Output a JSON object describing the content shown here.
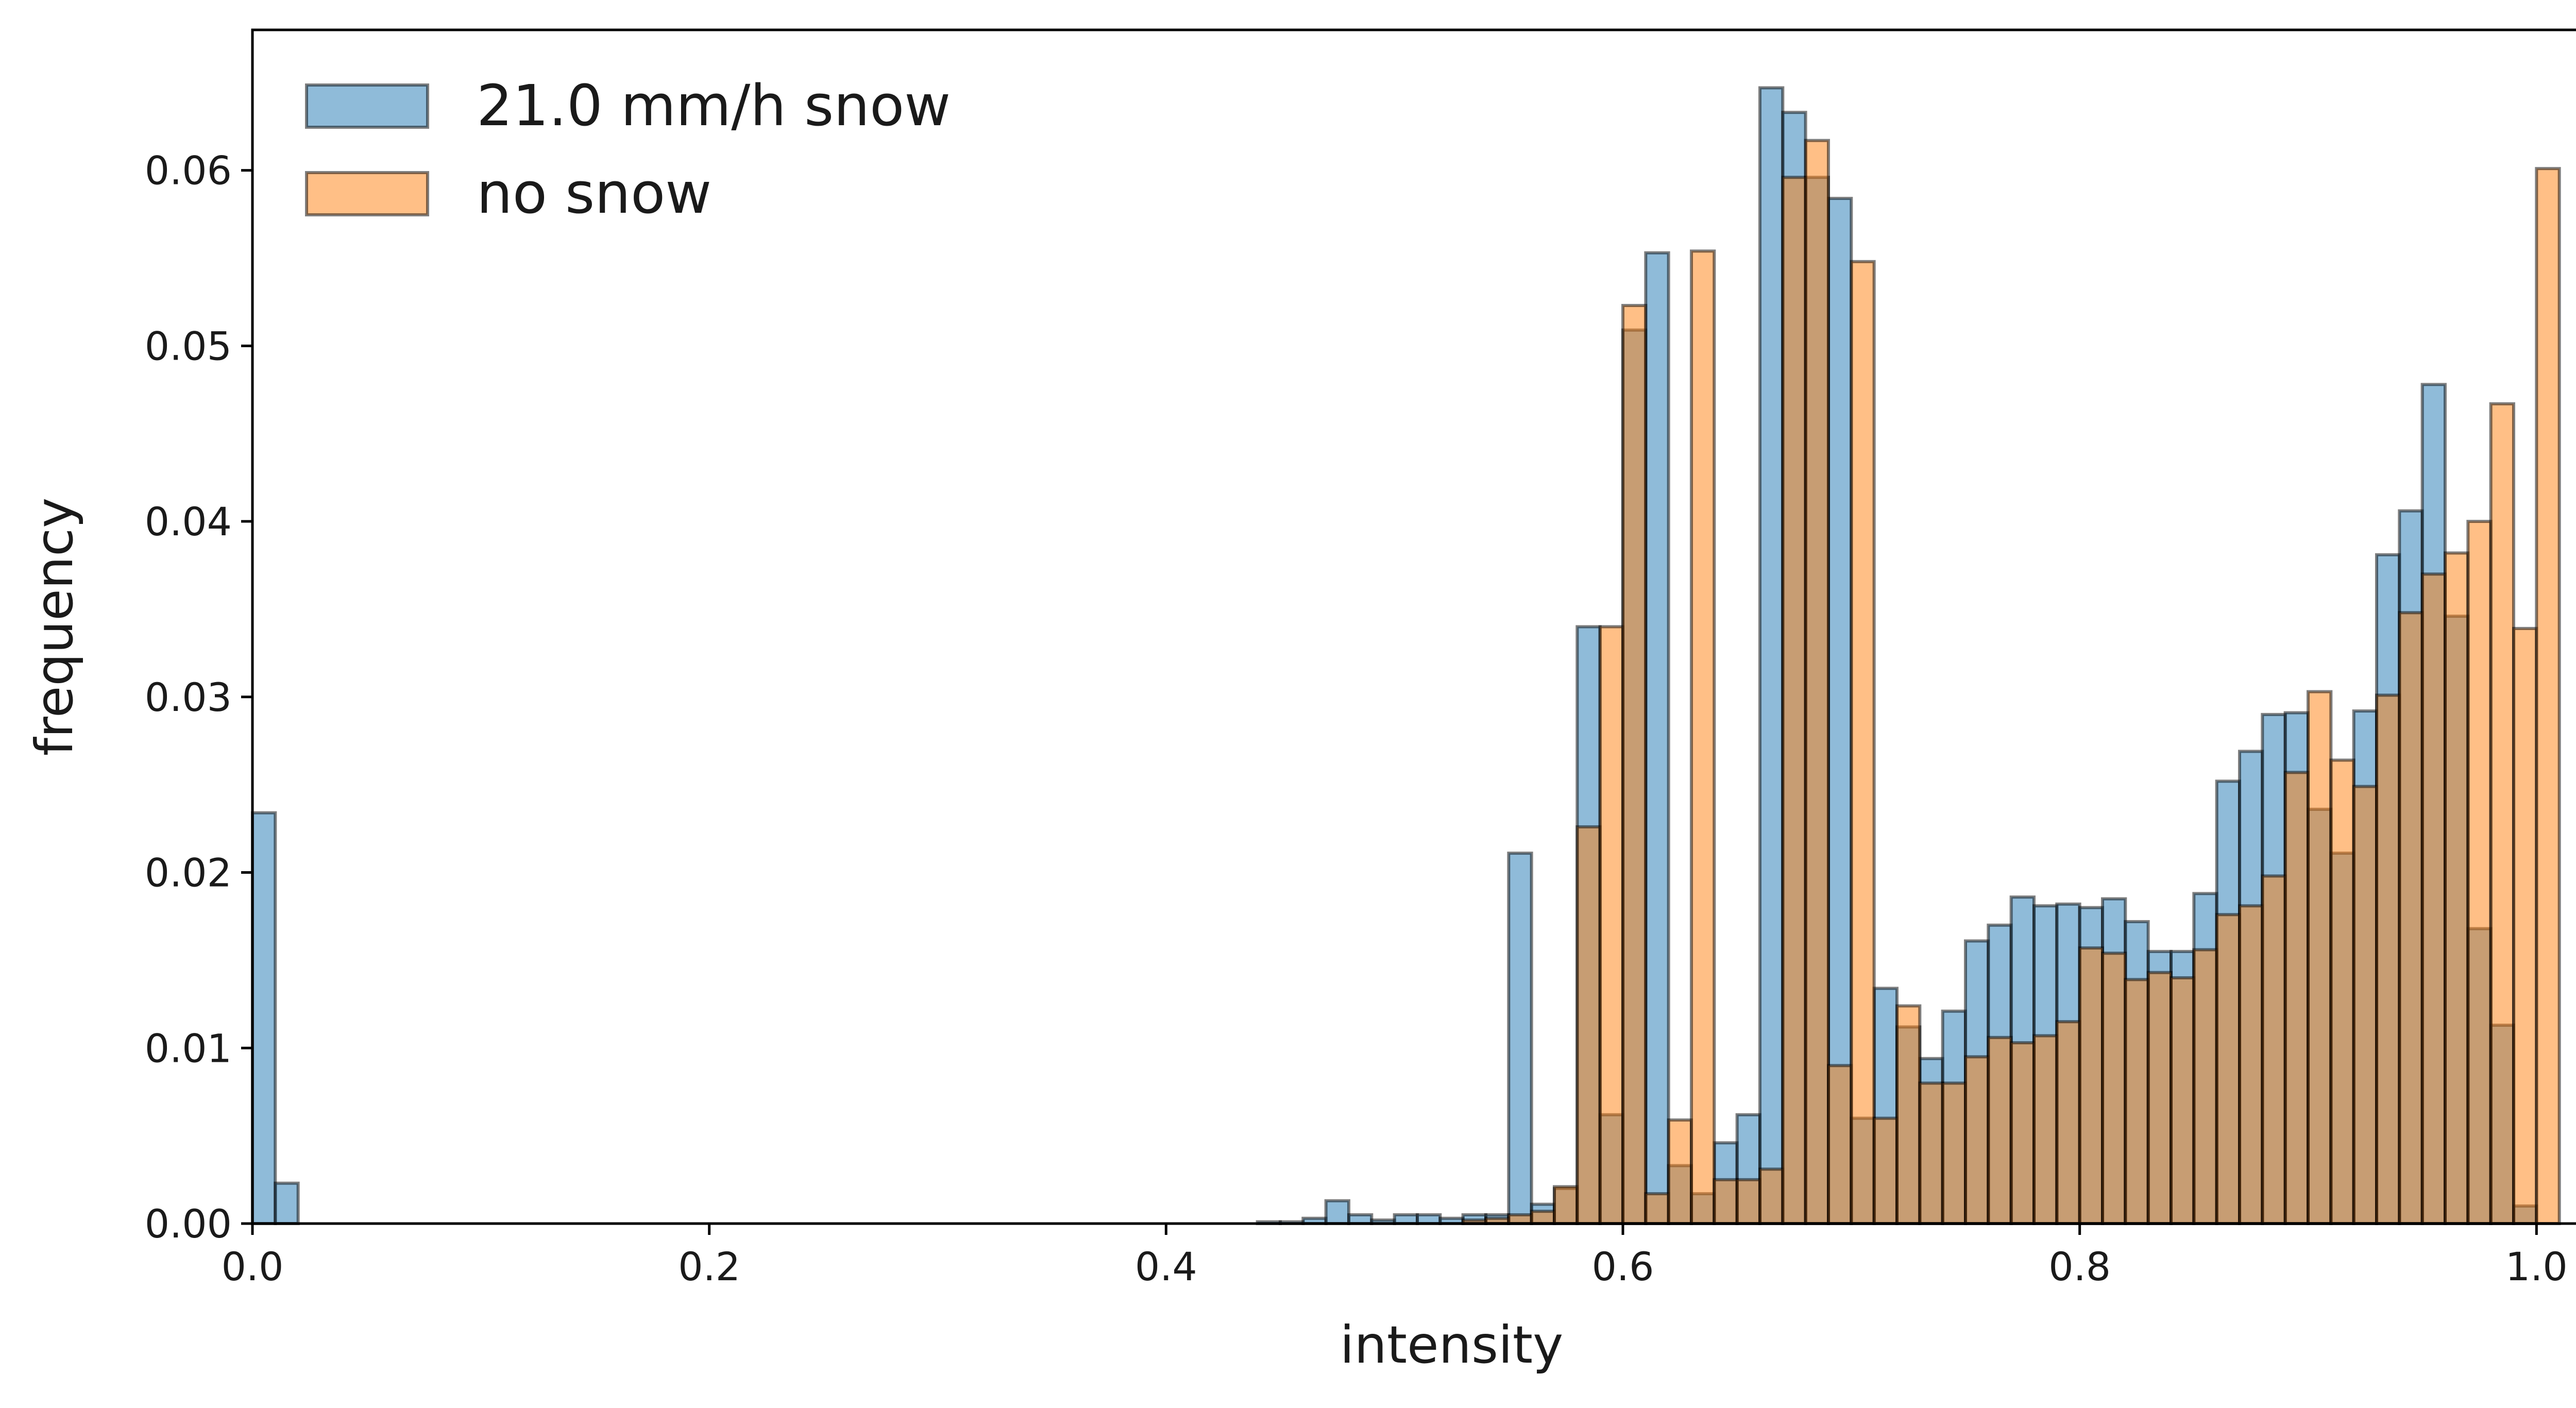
{
  "chart_data": {
    "type": "bar",
    "subtype": "overlapping histogram",
    "xlabel": "intensity",
    "ylabel": "frequency",
    "xlim": [
      0.0,
      1.05
    ],
    "ylim": [
      0.0,
      0.068
    ],
    "bin_width": 0.01,
    "x_ticks": [
      0.0,
      0.2,
      0.4,
      0.6,
      0.8,
      1.0
    ],
    "x_tick_labels": [
      "0.0",
      "0.2",
      "0.4",
      "0.6",
      "0.8",
      "1.0"
    ],
    "y_ticks": [
      0.0,
      0.01,
      0.02,
      0.03,
      0.04,
      0.05,
      0.06
    ],
    "y_tick_labels": [
      "0.00",
      "0.01",
      "0.02",
      "0.03",
      "0.04",
      "0.05",
      "0.06"
    ],
    "grid": false,
    "legend": {
      "position": "top-left",
      "frame": false
    },
    "series": [
      {
        "name": "21.0 mm/h snow",
        "color": "#1f77b4",
        "bins": [
          [
            0.0,
            0.0234
          ],
          [
            0.01,
            0.0023
          ],
          [
            0.44,
            0.0001
          ],
          [
            0.45,
            0.0001
          ],
          [
            0.46,
            0.0003
          ],
          [
            0.47,
            0.0013
          ],
          [
            0.48,
            0.0005
          ],
          [
            0.49,
            0.0002
          ],
          [
            0.5,
            0.0005
          ],
          [
            0.51,
            0.0005
          ],
          [
            0.52,
            0.0003
          ],
          [
            0.53,
            0.0005
          ],
          [
            0.54,
            0.0005
          ],
          [
            0.55,
            0.0211
          ],
          [
            0.56,
            0.0011
          ],
          [
            0.57,
            0.002
          ],
          [
            0.58,
            0.034
          ],
          [
            0.59,
            0.0062
          ],
          [
            0.6,
            0.0509
          ],
          [
            0.61,
            0.0553
          ],
          [
            0.62,
            0.0033
          ],
          [
            0.63,
            0.0017
          ],
          [
            0.64,
            0.0046
          ],
          [
            0.65,
            0.0062
          ],
          [
            0.66,
            0.0647
          ],
          [
            0.67,
            0.0633
          ],
          [
            0.68,
            0.0596
          ],
          [
            0.69,
            0.0584
          ],
          [
            0.7,
            0.006
          ],
          [
            0.71,
            0.0134
          ],
          [
            0.72,
            0.0112
          ],
          [
            0.73,
            0.0094
          ],
          [
            0.74,
            0.0121
          ],
          [
            0.75,
            0.0161
          ],
          [
            0.76,
            0.017
          ],
          [
            0.77,
            0.0186
          ],
          [
            0.78,
            0.0181
          ],
          [
            0.79,
            0.0182
          ],
          [
            0.8,
            0.018
          ],
          [
            0.81,
            0.0185
          ],
          [
            0.82,
            0.0172
          ],
          [
            0.83,
            0.0155
          ],
          [
            0.84,
            0.0155
          ],
          [
            0.85,
            0.0188
          ],
          [
            0.86,
            0.0252
          ],
          [
            0.87,
            0.0269
          ],
          [
            0.88,
            0.029
          ],
          [
            0.89,
            0.0291
          ],
          [
            0.9,
            0.0236
          ],
          [
            0.91,
            0.0211
          ],
          [
            0.92,
            0.0292
          ],
          [
            0.93,
            0.0381
          ],
          [
            0.94,
            0.0406
          ],
          [
            0.95,
            0.0478
          ],
          [
            0.96,
            0.0346
          ],
          [
            0.97,
            0.0168
          ],
          [
            0.98,
            0.0113
          ],
          [
            0.99,
            0.001
          ]
        ]
      },
      {
        "name": "no snow",
        "color": "#ff7f0e",
        "bins": [
          [
            0.53,
            0.0002
          ],
          [
            0.54,
            0.0003
          ],
          [
            0.55,
            0.0005
          ],
          [
            0.56,
            0.0007
          ],
          [
            0.57,
            0.0021
          ],
          [
            0.58,
            0.0226
          ],
          [
            0.59,
            0.034
          ],
          [
            0.6,
            0.0523
          ],
          [
            0.61,
            0.0017
          ],
          [
            0.62,
            0.0059
          ],
          [
            0.63,
            0.0554
          ],
          [
            0.64,
            0.0025
          ],
          [
            0.65,
            0.0025
          ],
          [
            0.66,
            0.0031
          ],
          [
            0.67,
            0.0596
          ],
          [
            0.68,
            0.0617
          ],
          [
            0.69,
            0.009
          ],
          [
            0.7,
            0.0548
          ],
          [
            0.71,
            0.006
          ],
          [
            0.72,
            0.0124
          ],
          [
            0.73,
            0.008
          ],
          [
            0.74,
            0.008
          ],
          [
            0.75,
            0.0095
          ],
          [
            0.76,
            0.0106
          ],
          [
            0.77,
            0.0103
          ],
          [
            0.78,
            0.0107
          ],
          [
            0.79,
            0.0115
          ],
          [
            0.8,
            0.0157
          ],
          [
            0.81,
            0.0154
          ],
          [
            0.82,
            0.0139
          ],
          [
            0.83,
            0.0143
          ],
          [
            0.84,
            0.014
          ],
          [
            0.85,
            0.0156
          ],
          [
            0.86,
            0.0176
          ],
          [
            0.87,
            0.0181
          ],
          [
            0.88,
            0.0198
          ],
          [
            0.89,
            0.0257
          ],
          [
            0.9,
            0.0303
          ],
          [
            0.91,
            0.0264
          ],
          [
            0.92,
            0.0249
          ],
          [
            0.93,
            0.0301
          ],
          [
            0.94,
            0.0348
          ],
          [
            0.95,
            0.037
          ],
          [
            0.96,
            0.0382
          ],
          [
            0.97,
            0.04
          ],
          [
            0.98,
            0.0467
          ],
          [
            0.99,
            0.0339
          ],
          [
            1.0,
            0.0601
          ]
        ]
      }
    ]
  }
}
